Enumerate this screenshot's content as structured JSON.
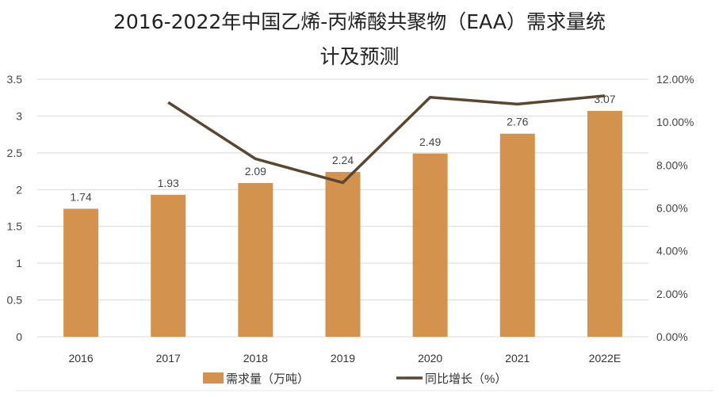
{
  "chart_data": {
    "type": "bar+line",
    "title": "2016-2022年中国乙烯-丙烯酸共聚物（EAA）需求量统计及预测",
    "title_lines": [
      "2016-2022年中国乙烯-丙烯酸共聚物（EAA）需求量统",
      "计及预测"
    ],
    "categories": [
      "2016",
      "2017",
      "2018",
      "2019",
      "2020",
      "2021",
      "2022E"
    ],
    "series": [
      {
        "name": "需求量（万吨）",
        "type": "bar",
        "axis": "left",
        "values": [
          1.74,
          1.93,
          2.09,
          2.24,
          2.49,
          2.76,
          3.07
        ],
        "data_labels": [
          "1.74",
          "1.93",
          "2.09",
          "2.24",
          "2.49",
          "2.76",
          "3.07"
        ],
        "color": "#D4924F"
      },
      {
        "name": "同比增长（%）",
        "type": "line",
        "axis": "right",
        "values": [
          null,
          10.92,
          8.29,
          7.18,
          11.16,
          10.84,
          11.23
        ],
        "color": "#5B4632"
      }
    ],
    "y_left": {
      "range": [
        0,
        3.5
      ],
      "ticks": [
        "0",
        "0.5",
        "1",
        "1.5",
        "2",
        "2.5",
        "3",
        "3.5"
      ]
    },
    "y_right": {
      "range": [
        0,
        12
      ],
      "ticks": [
        "0.00%",
        "2.00%",
        "4.00%",
        "6.00%",
        "8.00%",
        "10.00%",
        "12.00%"
      ]
    },
    "grid": true,
    "legend_position": "bottom"
  }
}
